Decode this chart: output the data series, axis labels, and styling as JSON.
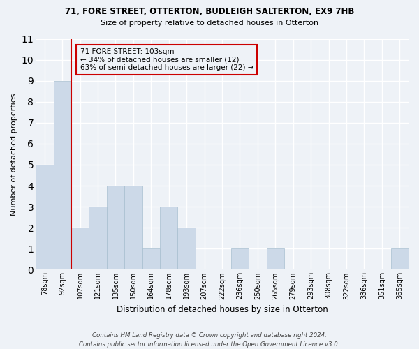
{
  "title1": "71, FORE STREET, OTTERTON, BUDLEIGH SALTERTON, EX9 7HB",
  "title2": "Size of property relative to detached houses in Otterton",
  "xlabel": "Distribution of detached houses by size in Otterton",
  "ylabel": "Number of detached properties",
  "categories": [
    "78sqm",
    "92sqm",
    "107sqm",
    "121sqm",
    "135sqm",
    "150sqm",
    "164sqm",
    "178sqm",
    "193sqm",
    "207sqm",
    "222sqm",
    "236sqm",
    "250sqm",
    "265sqm",
    "279sqm",
    "293sqm",
    "308sqm",
    "322sqm",
    "336sqm",
    "351sqm",
    "365sqm"
  ],
  "values": [
    5,
    9,
    2,
    3,
    4,
    4,
    1,
    3,
    2,
    0,
    0,
    1,
    0,
    1,
    0,
    0,
    0,
    0,
    0,
    0,
    1
  ],
  "bar_color": "#ccd9e8",
  "bar_edge_color": "#a8bfd0",
  "subject_line_color": "#cc0000",
  "ylim": [
    0,
    11
  ],
  "yticks": [
    0,
    1,
    2,
    3,
    4,
    5,
    6,
    7,
    8,
    9,
    10,
    11
  ],
  "annotation_box_color": "#cc0000",
  "annotation_text": "71 FORE STREET: 103sqm\n← 34% of detached houses are smaller (12)\n63% of semi-detached houses are larger (22) →",
  "footer": "Contains HM Land Registry data © Crown copyright and database right 2024.\nContains public sector information licensed under the Open Government Licence v3.0.",
  "background_color": "#eef2f7",
  "grid_color": "#ffffff"
}
